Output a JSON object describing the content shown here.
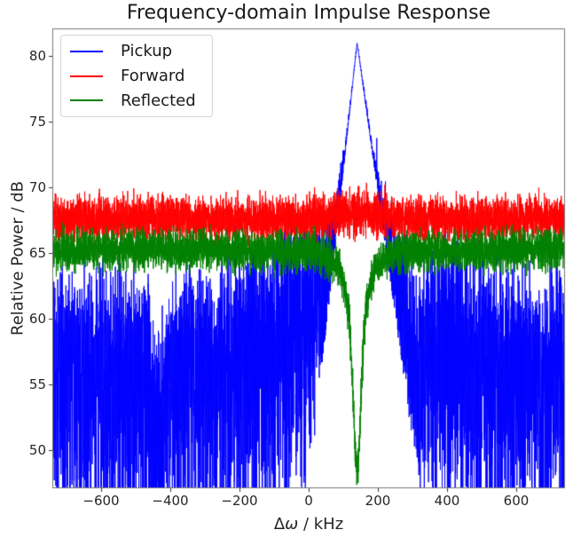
{
  "chart_data": {
    "type": "line",
    "title": "Frequency-domain Impulse Response",
    "xlabel": {
      "prefix": "Δ",
      "italic": "ω",
      "suffix": " / kHz"
    },
    "ylabel": "Relative Power / dB",
    "xlim": [
      -741,
      741
    ],
    "ylim": [
      47.1,
      82.1
    ],
    "xticks": {
      "values": [
        -600,
        -400,
        -200,
        0,
        200,
        400,
        600
      ],
      "labels": [
        "−600",
        "−400",
        "−200",
        "0",
        "200",
        "400",
        "600"
      ]
    },
    "yticks": {
      "values": [
        50,
        55,
        60,
        65,
        70,
        75,
        80
      ],
      "labels": [
        "50",
        "55",
        "60",
        "65",
        "70",
        "75",
        "80"
      ]
    },
    "grid": false,
    "legend": {
      "position": "upper-left",
      "entries": [
        "Pickup",
        "Forward",
        "Reflected"
      ]
    },
    "n_points": 5200,
    "seed": 20,
    "series": [
      {
        "name": "Pickup",
        "color": "#0000ff",
        "model": {
          "type": "noisy-resonance-peak",
          "floor_db": 57.4,
          "floor_bump_db": 4.3,
          "floor_bump_center_khz": 140,
          "floor_bump_width_khz": 330,
          "envelope_dips": [
            {
              "center_khz": -430,
              "depth_db": 4.5,
              "width_khz": 24
            },
            {
              "center_khz": 310,
              "depth_db": 3.5,
              "width_khz": 28
            }
          ],
          "peak_db": 81,
          "peak_center_khz": 140,
          "peak_slope_left_db_per_khz": 0.245,
          "peak_slope_right_db_per_khz": 0.19
        },
        "summary": {
          "peak_khz": 140,
          "peak_db": 81,
          "noise_floor_top_db": 62
        }
      },
      {
        "name": "Forward",
        "color": "#ff0000",
        "model": {
          "type": "flat-noise",
          "base_db": 67.6,
          "noise_std_db": 0.85,
          "bump_db": 0.5,
          "bump_center_khz": 140,
          "bump_width_khz": 90
        },
        "summary": {
          "mean_db": 67.6,
          "range_db": [
            65.5,
            70.3
          ]
        }
      },
      {
        "name": "Reflected",
        "color": "#008000",
        "model": {
          "type": "noisy-notch",
          "base_db": 65.25,
          "noise_std_db": 0.75,
          "notch_center_khz": 140,
          "notch_depth_db": 16.85,
          "notch_hwhm_khz": 16
        },
        "summary": {
          "mean_db": 65.25,
          "notch_khz": 140,
          "notch_min_db": 48.4
        }
      }
    ]
  },
  "axes_style": {
    "spine_color": "#787878",
    "tick_color": "#333333",
    "text_color": "#262626"
  }
}
